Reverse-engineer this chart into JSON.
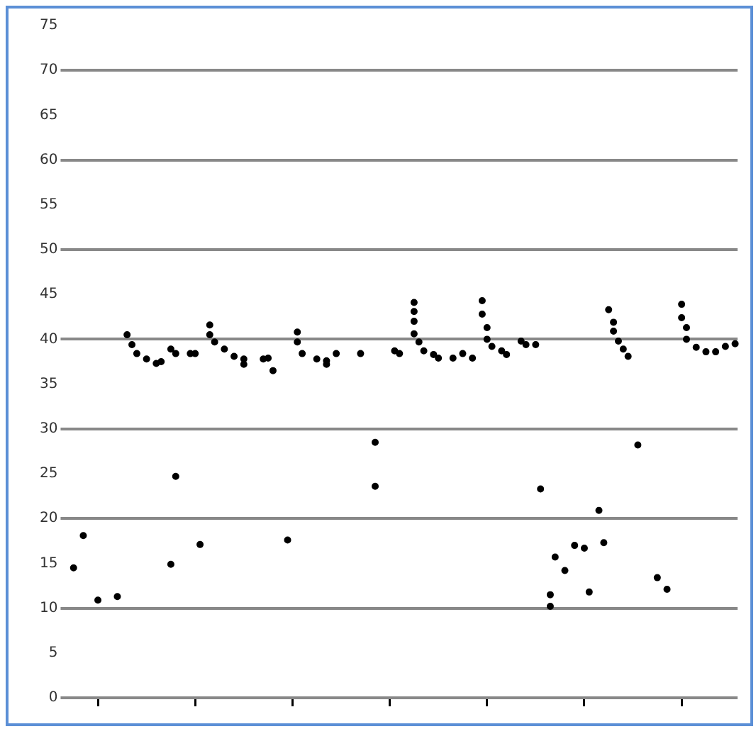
{
  "chart_data": {
    "type": "scatter",
    "marker": "circle",
    "grid": "y",
    "tick_labels": "y",
    "legend": false,
    "categories": [
      null,
      null,
      null,
      null,
      null,
      null,
      null,
      null,
      null,
      null,
      null,
      null,
      null,
      null,
      null,
      null,
      null,
      null,
      null,
      null,
      null,
      null,
      null,
      null,
      null,
      null,
      null,
      null,
      null,
      null,
      null,
      null,
      null,
      null,
      null,
      null,
      null,
      null,
      null,
      null,
      null,
      null,
      null,
      null,
      null,
      null,
      null,
      null,
      null,
      null,
      null,
      null,
      null,
      null,
      null,
      null,
      null,
      null,
      null,
      null,
      null,
      null,
      null,
      null,
      null,
      null,
      null,
      null,
      null,
      null,
      null,
      null,
      null,
      null,
      null,
      null,
      null,
      null,
      null,
      null,
      null,
      null,
      null,
      null,
      null,
      null,
      null,
      null,
      null,
      null,
      null,
      null,
      null,
      null,
      null,
      null,
      null,
      null,
      null,
      null,
      null,
      null,
      null,
      null,
      null,
      null,
      null,
      null,
      null,
      null,
      null,
      null,
      null,
      null,
      null,
      null,
      null,
      null,
      null,
      null,
      null,
      null,
      null,
      null,
      null,
      null,
      null,
      null,
      null,
      null,
      null,
      null,
      null,
      null,
      null,
      null,
      null,
      null
    ],
    "ylim": [
      0,
      75
    ],
    "yticks": [
      0,
      5,
      10,
      15,
      20,
      25,
      30,
      35,
      40,
      45,
      50,
      55,
      60,
      65,
      70,
      75
    ],
    "series": [
      {
        "color": "#000000",
        "values": [
          null,
          14.5,
          null,
          18.1,
          null,
          null,
          10.9,
          null,
          null,
          null,
          11.3,
          null,
          40.5,
          39.4,
          38.4,
          null,
          37.8,
          null,
          37.3,
          37.5,
          null,
          38.9,
          38.4,
          null,
          null,
          38.4,
          38.4,
          17.1,
          null,
          41.6,
          39.7,
          null,
          38.9,
          null,
          38.1,
          null,
          37.8,
          null,
          null,
          null,
          37.8,
          37.9,
          36.5,
          null,
          null,
          17.6,
          null,
          40.8,
          38.4,
          null,
          null,
          37.8,
          null,
          37.6,
          null,
          38.4,
          null,
          null,
          null,
          null,
          38.4,
          null,
          null,
          28.5,
          null,
          null,
          null,
          38.7,
          38.4,
          null,
          null,
          44.1,
          39.7,
          38.7,
          null,
          38.3,
          37.9,
          null,
          null,
          37.9,
          null,
          38.4,
          null,
          37.9,
          null,
          44.3,
          41.3,
          39.2,
          null,
          38.7,
          38.3,
          null,
          null,
          39.8,
          39.4,
          null,
          39.4,
          23.3,
          null,
          11.5,
          15.7,
          null,
          14.2,
          null,
          17.0,
          null,
          16.7,
          11.8,
          null,
          20.9,
          17.3,
          43.3,
          41.9,
          39.8,
          38.9,
          38.1,
          null,
          28.2,
          null,
          null,
          null,
          13.4,
          null,
          12.1,
          null,
          null,
          43.9,
          41.3,
          null,
          39.1,
          null,
          38.6,
          null,
          38.6,
          null,
          39.2,
          null,
          39.5
        ]
      },
      {
        "color": "#000000",
        "values": [
          null,
          null,
          null,
          null,
          null,
          null,
          null,
          null,
          null,
          null,
          null,
          null,
          null,
          null,
          null,
          null,
          null,
          null,
          null,
          null,
          null,
          14.9,
          24.7,
          null,
          null,
          null,
          null,
          null,
          null,
          40.5,
          null,
          null,
          null,
          null,
          null,
          null,
          37.2,
          null,
          null,
          null,
          null,
          null,
          null,
          null,
          null,
          null,
          null,
          39.7,
          null,
          null,
          null,
          null,
          null,
          37.2,
          null,
          null,
          null,
          null,
          null,
          null,
          null,
          null,
          null,
          23.6,
          null,
          null,
          null,
          null,
          null,
          null,
          null,
          43.1,
          null,
          null,
          null,
          null,
          null,
          null,
          null,
          null,
          null,
          null,
          null,
          null,
          null,
          42.8,
          40,
          null,
          null,
          null,
          null,
          null,
          null,
          null,
          null,
          null,
          null,
          null,
          null,
          10.2,
          null,
          null,
          null,
          null,
          null,
          null,
          null,
          null,
          null,
          null,
          null,
          null,
          40.9,
          null,
          null,
          null,
          null,
          null,
          null,
          null,
          null,
          null,
          null,
          null,
          null,
          null,
          42.4,
          40,
          null,
          null,
          null,
          null,
          null,
          null,
          null,
          null,
          null,
          null
        ]
      },
      {
        "color": "#000000",
        "values": [
          null,
          null,
          null,
          null,
          null,
          null,
          null,
          null,
          null,
          null,
          null,
          null,
          null,
          null,
          null,
          null,
          null,
          null,
          null,
          null,
          null,
          null,
          null,
          null,
          null,
          null,
          null,
          null,
          null,
          null,
          null,
          null,
          null,
          null,
          null,
          null,
          null,
          null,
          null,
          null,
          null,
          null,
          null,
          null,
          null,
          null,
          null,
          null,
          null,
          null,
          null,
          null,
          null,
          null,
          null,
          null,
          null,
          null,
          null,
          null,
          null,
          null,
          null,
          null,
          null,
          null,
          null,
          null,
          null,
          null,
          null,
          42,
          null,
          null,
          null,
          null,
          null,
          null,
          null,
          null,
          null,
          null,
          null,
          null,
          null,
          null,
          null,
          null,
          null,
          null,
          null,
          null,
          null,
          null,
          null,
          null,
          null,
          null,
          null,
          null,
          null,
          null,
          null,
          null,
          null,
          null,
          null,
          null,
          null,
          null,
          null,
          null,
          null,
          null,
          null,
          null,
          null,
          null,
          null,
          null,
          null,
          null,
          null,
          null,
          null,
          null,
          null,
          null,
          null,
          null,
          null,
          null,
          null,
          null,
          null,
          null,
          null,
          null
        ]
      },
      {
        "color": "#000000",
        "values": [
          null,
          null,
          null,
          null,
          null,
          null,
          null,
          null,
          null,
          null,
          null,
          null,
          null,
          null,
          null,
          null,
          null,
          null,
          null,
          null,
          null,
          null,
          null,
          null,
          null,
          null,
          null,
          null,
          null,
          null,
          null,
          null,
          null,
          null,
          null,
          null,
          null,
          null,
          null,
          null,
          null,
          null,
          null,
          null,
          null,
          null,
          null,
          null,
          null,
          null,
          null,
          null,
          null,
          null,
          null,
          null,
          null,
          null,
          null,
          null,
          null,
          null,
          null,
          null,
          null,
          null,
          null,
          null,
          null,
          null,
          null,
          40.6,
          null,
          null,
          null,
          null,
          null,
          null,
          null,
          null,
          null,
          null,
          null,
          null,
          null,
          null,
          null,
          null,
          null,
          null,
          null,
          null,
          null,
          null,
          null,
          null,
          null,
          null,
          null,
          null,
          null,
          null,
          null,
          null,
          null,
          null,
          null,
          null,
          null,
          null,
          null,
          null,
          null,
          null,
          null,
          null,
          null,
          null,
          null,
          null,
          null,
          null,
          null,
          null,
          null,
          null,
          null,
          null,
          null,
          null,
          null,
          null,
          null,
          null,
          null,
          null,
          null,
          null
        ]
      }
    ]
  }
}
